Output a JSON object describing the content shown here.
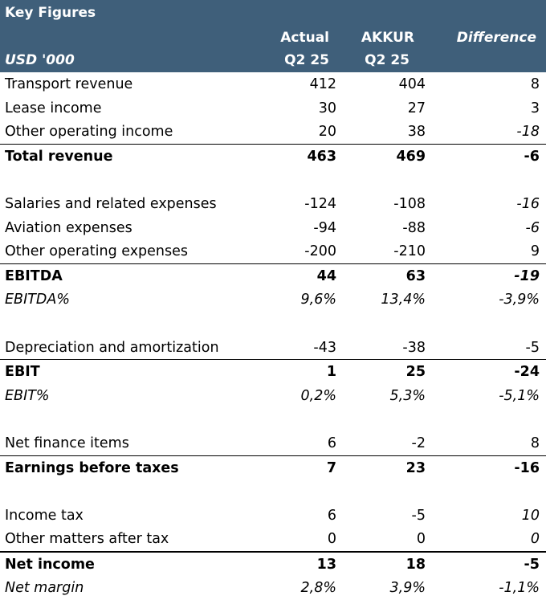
{
  "title": "Key Figures",
  "header": {
    "unit": "USD '000",
    "col_actual": [
      "Actual",
      "Q2 25"
    ],
    "col_akkur": [
      "AKKUR",
      "Q2 25"
    ],
    "col_diff": "Difference"
  },
  "rows": {
    "r1": {
      "label": "Transport revenue",
      "actual": "412",
      "akkur": "404",
      "diff": "8"
    },
    "r2": {
      "label": "Lease income",
      "actual": "30",
      "akkur": "27",
      "diff": "3"
    },
    "r3": {
      "label": "Other operating income",
      "actual": "20",
      "akkur": "38",
      "diff": "-18"
    },
    "r4": {
      "label": "Total revenue",
      "actual": "463",
      "akkur": "469",
      "diff": "-6"
    },
    "r5": {
      "label": "Salaries and related expenses",
      "actual": "-124",
      "akkur": "-108",
      "diff": "-16"
    },
    "r6": {
      "label": "Aviation expenses",
      "actual": "-94",
      "akkur": "-88",
      "diff": "-6"
    },
    "r7": {
      "label": "Other operating expenses",
      "actual": "-200",
      "akkur": "-210",
      "diff": "9"
    },
    "r8": {
      "label": "EBITDA",
      "actual": "44",
      "akkur": "63",
      "diff": "-19"
    },
    "r9": {
      "label": "EBITDA%",
      "actual": "9,6%",
      "akkur": "13,4%",
      "diff": "-3,9%"
    },
    "r10": {
      "label": "Depreciation and amortization",
      "actual": "-43",
      "akkur": "-38",
      "diff": "-5"
    },
    "r11": {
      "label": "EBIT",
      "actual": "1",
      "akkur": "25",
      "diff": "-24"
    },
    "r12": {
      "label": "EBIT%",
      "actual": "0,2%",
      "akkur": "5,3%",
      "diff": "-5,1%"
    },
    "r13": {
      "label": "Net finance items",
      "actual": "6",
      "akkur": "-2",
      "diff": "8"
    },
    "r14": {
      "label": "Earnings before taxes",
      "actual": "7",
      "akkur": "23",
      "diff": "-16"
    },
    "r15": {
      "label": "Income tax",
      "actual": "6",
      "akkur": "-5",
      "diff": "10"
    },
    "r16": {
      "label": "Other matters after tax",
      "actual": "0",
      "akkur": "0",
      "diff": "0"
    },
    "r17": {
      "label": "Net income",
      "actual": "13",
      "akkur": "18",
      "diff": "-5"
    },
    "r18": {
      "label": "Net margin",
      "actual": "2,8%",
      "akkur": "3,9%",
      "diff": "-1,1%"
    }
  }
}
